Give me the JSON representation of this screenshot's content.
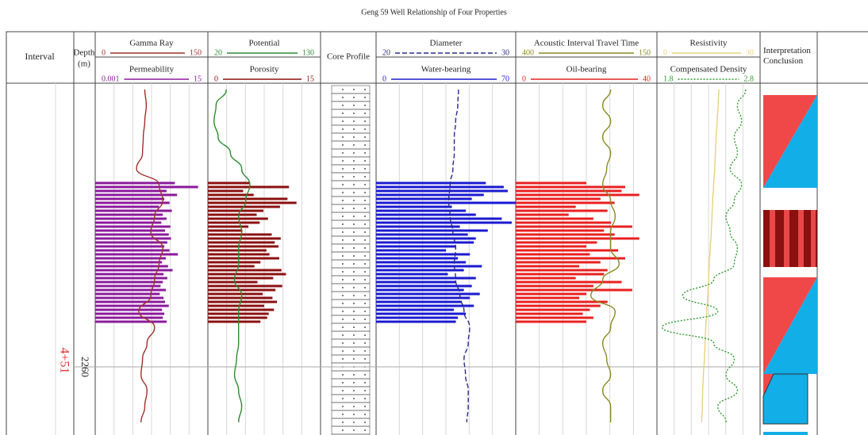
{
  "title": "Geng 59 Well Relationship of Four Properties",
  "columns": {
    "interval": "Interval",
    "depth": "Depth",
    "depth_unit": "(m)",
    "core": "Core Profile",
    "conclusion": "Interpretation Conclusion"
  },
  "interval_label": "4+51",
  "chart_data": {
    "type": "well-log",
    "ylim": [
      2242.1,
      2264.3
    ],
    "yticks": [
      2260
    ],
    "curve_depths": [
      2242.5,
      2243.5,
      2244.5,
      2245.5,
      2246.5,
      2247.5,
      2248.5,
      2249.5,
      2250.5,
      2251.5,
      2252.5,
      2253.5,
      2254.5,
      2255.5,
      2256.5,
      2257.5,
      2258.5,
      2259.5,
      2260.5,
      2261.5,
      2262.5,
      2263.5
    ],
    "curves": [
      {
        "name": "Gamma Ray",
        "color": "#a0302a",
        "style": "solid",
        "xlim": [
          0,
          150
        ],
        "values": [
          66,
          68,
          66,
          64,
          63,
          55,
          85,
          90,
          79,
          74,
          90,
          85,
          79,
          74,
          58,
          79,
          69,
          63,
          61,
          69,
          66,
          61
        ]
      },
      {
        "name": "Potential",
        "color": "#2e8b2e",
        "style": "solid",
        "xlim": [
          20,
          130
        ],
        "values": [
          38,
          28,
          26,
          30,
          42,
          53,
          61,
          57,
          50,
          53,
          50,
          50,
          46,
          53,
          50,
          50,
          50,
          48,
          46,
          50,
          53,
          50
        ]
      },
      {
        "name": "Diameter",
        "color": "#2a2a8c",
        "style": "dashed",
        "xlim": [
          20,
          30
        ],
        "values": [
          25.9,
          25.85,
          25.7,
          25.6,
          25.6,
          25.5,
          25.3,
          25.2,
          25.3,
          25.5,
          25.7,
          25.6,
          25.7,
          26.0,
          26.3,
          26.7,
          26.6,
          26.3,
          26.4,
          26.6,
          26.6,
          26.5
        ]
      },
      {
        "name": "Acoustic Interval Travel Time",
        "color": "#8a8a20",
        "style": "solid",
        "xlim": [
          400,
          150
        ],
        "values": [
          232,
          246,
          232,
          246,
          232,
          239,
          246,
          232,
          224,
          232,
          232,
          217,
          246,
          267,
          224,
          232,
          246,
          239,
          232,
          246,
          232,
          232
        ]
      },
      {
        "name": "Resistivity",
        "color": "#e8d27a",
        "style": "solid",
        "xlim": [
          0,
          30
        ],
        "values": [
          18,
          17.8,
          17.5,
          17.2,
          17,
          16.8,
          16.5,
          16.2,
          16,
          15.8,
          15.5,
          15.2,
          15,
          14.8,
          14.5,
          14.2,
          14,
          13.8,
          13.5,
          13.3,
          13.2,
          13
        ]
      },
      {
        "name": "Compensated Density",
        "color": "#2e9a2e",
        "style": "dotted",
        "xlim": [
          1.8,
          2.8
        ],
        "values": [
          2.66,
          2.58,
          2.62,
          2.55,
          2.58,
          2.51,
          2.62,
          2.55,
          2.47,
          2.51,
          2.58,
          2.55,
          2.35,
          2.05,
          2.39,
          1.85,
          2.35,
          2.55,
          2.47,
          2.58,
          2.39,
          2.47
        ]
      }
    ],
    "bar_depths": [
      2248.4,
      2248.65,
      2248.9,
      2249.15,
      2249.4,
      2249.65,
      2249.9,
      2250.15,
      2250.4,
      2250.65,
      2250.9,
      2251.15,
      2251.4,
      2251.65,
      2251.9,
      2252.15,
      2252.4,
      2252.65,
      2252.9,
      2253.15,
      2253.4,
      2253.65,
      2253.9,
      2254.15,
      2254.4,
      2254.65,
      2254.9,
      2255.15,
      2255.4,
      2255.65,
      2255.9,
      2256.15,
      2256.4,
      2256.65,
      2256.9,
      2257.15
    ],
    "bars": [
      {
        "name": "Permeability",
        "color": "#8b1a9b",
        "xlim": [
          0.001,
          15
        ],
        "values": [
          10.6,
          13.7,
          9.5,
          10.9,
          9.2,
          9.9,
          8.5,
          10.2,
          9.0,
          9.5,
          8.8,
          10.0,
          9.3,
          9.8,
          10.1,
          9.6,
          9.2,
          9.9,
          11.0,
          9.4,
          8.9,
          9.7,
          10.3,
          9.1,
          9.6,
          9.0,
          8.7,
          9.4,
          8.6,
          9.1,
          9.3,
          9.8,
          8.9,
          9.2,
          9.0,
          9.5
        ]
      },
      {
        "name": "Porosity",
        "color": "#8b1010",
        "xlim": [
          0,
          15
        ],
        "values": [
          5.5,
          10.8,
          4.7,
          6.1,
          10.6,
          11.8,
          9.6,
          7.4,
          6.5,
          8.0,
          6.9,
          5.4,
          4.6,
          8.5,
          9.7,
          8.9,
          9.4,
          7.8,
          8.2,
          9.5,
          7.0,
          6.2,
          9.8,
          10.4,
          8.7,
          6.6,
          9.9,
          9.0,
          7.3,
          8.6,
          9.2,
          7.5,
          8.8,
          8.1,
          7.9,
          7.0
        ]
      },
      {
        "name": "Water-bearing",
        "color": "#1a1ad0",
        "xlim": [
          0,
          70
        ],
        "values": [
          55,
          64,
          66,
          54,
          48,
          70,
          38,
          45,
          50,
          63,
          68,
          42,
          56,
          46,
          50,
          49,
          40,
          35,
          47,
          41,
          45,
          53,
          44,
          36,
          50,
          40,
          48,
          44,
          52,
          47,
          43,
          49,
          39,
          45,
          41,
          40
        ]
      },
      {
        "name": "Oil-bearing",
        "color": "#e82020",
        "xlim": [
          0,
          40
        ],
        "values": [
          20,
          31,
          30,
          35,
          24,
          28,
          17,
          26,
          15,
          22,
          27,
          33,
          25,
          28,
          35,
          23,
          20,
          29,
          21,
          31,
          24,
          18,
          26,
          25,
          17,
          30,
          22,
          33,
          20,
          18,
          26,
          24,
          21,
          19,
          22,
          20
        ]
      }
    ]
  }
}
